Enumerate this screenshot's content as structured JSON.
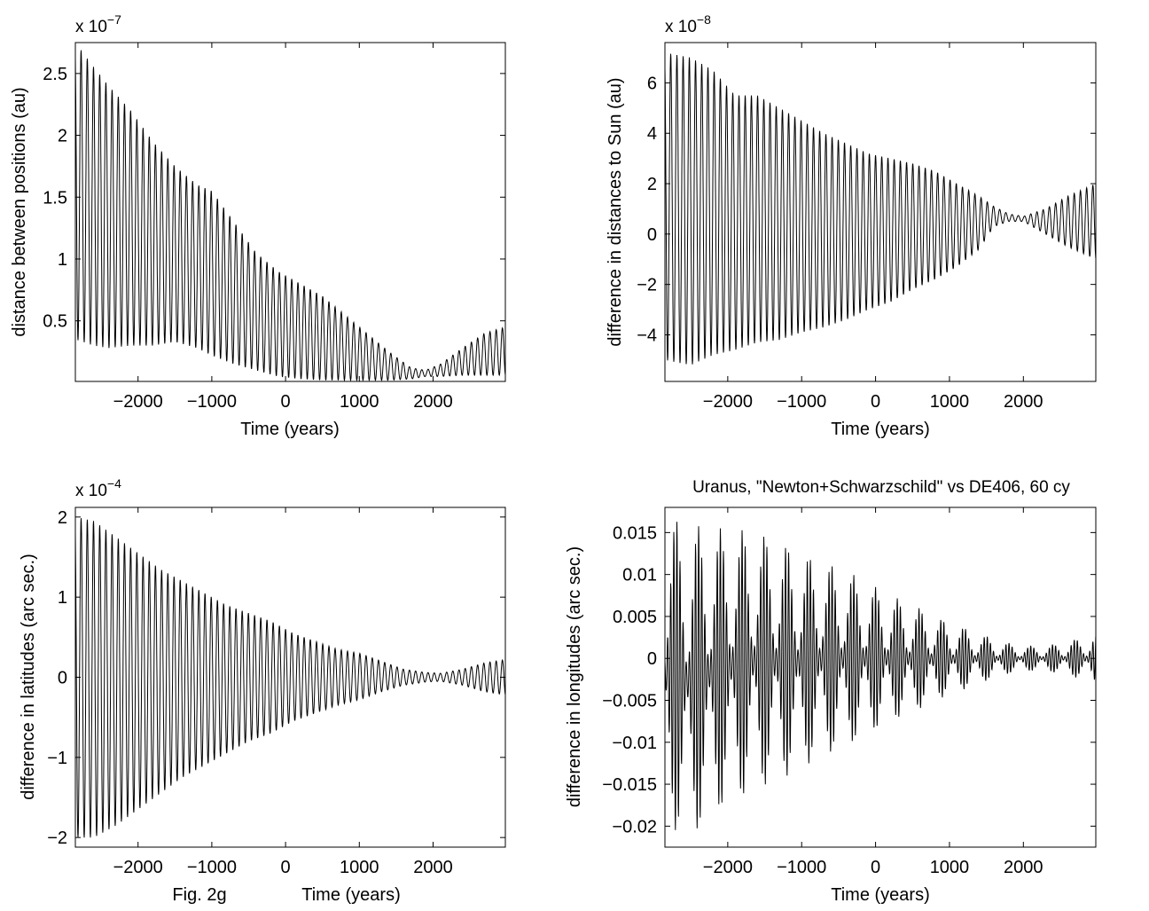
{
  "figure": {
    "title": "Uranus, \"Newton+Schwarzschild\" vs DE406, 60 cy",
    "caption": "Fig. 2g",
    "line_color": "#000000"
  },
  "chart_data": [
    {
      "type": "line",
      "panel": "top-left",
      "xlabel": "Time (years)",
      "ylabel": "distance between positions (au)",
      "scale_label": "x 10",
      "scale_exponent": "−7",
      "xlim": [
        -2850,
        2980
      ],
      "ylim": [
        0.01,
        2.75
      ],
      "xticks": [
        -2000,
        -1000,
        0,
        1000,
        2000
      ],
      "xtick_labels": [
        "−2000",
        "−1000",
        "0",
        "1000",
        "2000"
      ],
      "yticks": [
        0.5,
        1,
        1.5,
        2,
        2.5
      ],
      "ytick_labels": [
        "0.5",
        "1",
        "1.5",
        "2",
        "2.5"
      ],
      "envelope": {
        "x": [
          -2850,
          -2600,
          -2400,
          -2100,
          -1800,
          -1500,
          -1200,
          -1000,
          -700,
          -400,
          -100,
          200,
          500,
          800,
          1100,
          1400,
          1700,
          1900,
          2100,
          2400,
          2700,
          2980
        ],
        "upper": [
          2.75,
          2.55,
          2.4,
          2.2,
          1.95,
          1.75,
          1.6,
          1.55,
          1.3,
          1.05,
          0.9,
          0.8,
          0.7,
          0.55,
          0.4,
          0.25,
          0.12,
          0.1,
          0.15,
          0.28,
          0.4,
          0.45
        ],
        "lower": [
          0.35,
          0.3,
          0.28,
          0.3,
          0.3,
          0.33,
          0.28,
          0.22,
          0.15,
          0.1,
          0.05,
          0.03,
          0.02,
          0.02,
          0.02,
          0.02,
          0.03,
          0.05,
          0.05,
          0.06,
          0.06,
          0.06
        ]
      },
      "oscillation_period_years": 84
    },
    {
      "type": "line",
      "panel": "top-right",
      "xlabel": "Time (years)",
      "ylabel": "difference in distances to Sun (au)",
      "scale_label": "x 10",
      "scale_exponent": "−8",
      "xlim": [
        -2850,
        2980
      ],
      "ylim": [
        -5.85,
        7.6
      ],
      "xticks": [
        -2000,
        -1000,
        0,
        1000,
        2000
      ],
      "xtick_labels": [
        "−2000",
        "−1000",
        "0",
        "1000",
        "2000"
      ],
      "yticks": [
        -4,
        -2,
        0,
        2,
        4,
        6
      ],
      "ytick_labels": [
        "−4",
        "−2",
        "0",
        "2",
        "4",
        "6"
      ],
      "envelope": {
        "x": [
          -2850,
          -2500,
          -2200,
          -1900,
          -1600,
          -1300,
          -1000,
          -700,
          -400,
          -100,
          200,
          500,
          800,
          1100,
          1400,
          1600,
          1800,
          2000,
          2300,
          2600,
          2980
        ],
        "upper": [
          7.2,
          7.0,
          6.5,
          5.5,
          5.5,
          5.0,
          4.5,
          4.0,
          3.6,
          3.2,
          3.0,
          2.8,
          2.5,
          2.0,
          1.5,
          1.1,
          0.8,
          0.7,
          1.0,
          1.5,
          2.0
        ],
        "lower": [
          -5.0,
          -5.2,
          -4.8,
          -4.6,
          -4.3,
          -4.2,
          -3.9,
          -3.7,
          -3.4,
          -3.0,
          -2.7,
          -2.2,
          -1.8,
          -1.3,
          -0.6,
          0.3,
          0.5,
          0.5,
          0.0,
          -0.5,
          -1.0
        ]
      },
      "oscillation_period_years": 84
    },
    {
      "type": "line",
      "panel": "bottom-left",
      "xlabel": "Time (years)",
      "ylabel": "difference in latitudes (arc sec.)",
      "scale_label": "x 10",
      "scale_exponent": "−4",
      "xlim": [
        -2850,
        2980
      ],
      "ylim": [
        -2.12,
        2.12
      ],
      "xticks": [
        -2000,
        -1000,
        0,
        1000,
        2000
      ],
      "xtick_labels": [
        "−2000",
        "−1000",
        "0",
        "1000",
        "2000"
      ],
      "yticks": [
        -2,
        -1,
        0,
        1,
        2
      ],
      "ytick_labels": [
        "−2",
        "−1",
        "0",
        "1",
        "2"
      ],
      "envelope": {
        "x": [
          -2850,
          -2600,
          -2300,
          -2000,
          -1700,
          -1400,
          -1100,
          -800,
          -500,
          -200,
          100,
          400,
          700,
          1000,
          1300,
          1600,
          1900,
          2100,
          2400,
          2700,
          2980
        ],
        "upper": [
          2.0,
          1.95,
          1.75,
          1.55,
          1.35,
          1.2,
          1.05,
          0.9,
          0.8,
          0.7,
          0.55,
          0.45,
          0.35,
          0.3,
          0.2,
          0.1,
          0.06,
          0.05,
          0.1,
          0.18,
          0.22
        ],
        "lower": [
          -2.0,
          -2.0,
          -1.85,
          -1.65,
          -1.45,
          -1.25,
          -1.1,
          -0.95,
          -0.8,
          -0.7,
          -0.55,
          -0.45,
          -0.35,
          -0.28,
          -0.18,
          -0.1,
          -0.06,
          -0.05,
          -0.1,
          -0.18,
          -0.22
        ]
      },
      "oscillation_period_years": 84
    },
    {
      "type": "line",
      "panel": "bottom-right",
      "xlabel": "Time (years)",
      "ylabel": "difference in longitudes (arc sec.)",
      "xlim": [
        -2850,
        2980
      ],
      "ylim": [
        -0.0225,
        0.018
      ],
      "xticks": [
        -2000,
        -1000,
        0,
        1000,
        2000
      ],
      "xtick_labels": [
        "−2000",
        "−1000",
        "0",
        "1000",
        "2000"
      ],
      "yticks": [
        -0.02,
        -0.015,
        -0.01,
        -0.005,
        0,
        0.005,
        0.01,
        0.015
      ],
      "ytick_labels": [
        "−0.02",
        "−0.015",
        "−0.01",
        "−0.005",
        "0",
        "0.005",
        "0.01",
        "0.015"
      ],
      "envelope": {
        "x": [
          -2850,
          -2500,
          -2200,
          -1900,
          -1600,
          -1300,
          -1000,
          -700,
          -400,
          -100,
          200,
          500,
          800,
          1100,
          1400,
          1700,
          2000,
          2300,
          2600,
          2980
        ],
        "upper": [
          0.017,
          0.016,
          0.0155,
          0.0155,
          0.015,
          0.014,
          0.0125,
          0.0115,
          0.0105,
          0.009,
          0.0075,
          0.0065,
          0.005,
          0.004,
          0.003,
          0.002,
          0.0015,
          0.0015,
          0.002,
          0.003
        ],
        "lower": [
          -0.02,
          -0.0215,
          -0.0185,
          -0.017,
          -0.0155,
          -0.0145,
          -0.013,
          -0.0115,
          -0.0105,
          -0.009,
          -0.0075,
          -0.0065,
          -0.005,
          -0.004,
          -0.003,
          -0.002,
          -0.0015,
          -0.0015,
          -0.002,
          -0.003
        ]
      },
      "oscillation_period_years": 42
    }
  ]
}
